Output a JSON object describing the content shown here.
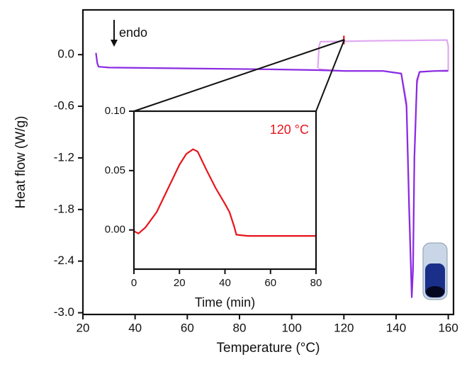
{
  "chart_data": [
    {
      "type": "line",
      "xlabel": "Temperature (°C)",
      "ylabel": "Heat flow (W/g)",
      "xlim": [
        20,
        162
      ],
      "xticks": [
        20,
        40,
        60,
        80,
        100,
        120,
        140,
        160
      ],
      "ylim": [
        -3.02,
        0.52
      ],
      "yticks": [
        {
          "value": 0,
          "label": "0.0"
        },
        -0.6,
        -1.2,
        -1.8,
        -2.4,
        {
          "value": -3,
          "label": "-3.0"
        }
      ],
      "annotations": [
        "endo"
      ],
      "series": [
        {
          "color": "#e0a8f0",
          "x": [
            110,
            110.5,
            111,
            130,
            159.5,
            160,
            160,
            155,
            149,
            148,
            147,
            146.5,
            146,
            145,
            144,
            142,
            135,
            120,
            111,
            110.5
          ],
          "values": [
            -0.16,
            0.1,
            0.15,
            0.16,
            0.17,
            0.1,
            -0.18,
            -0.19,
            -0.2,
            -0.35,
            -1.2,
            -2.4,
            -2.75,
            -1.7,
            -0.55,
            -0.22,
            -0.19,
            -0.19,
            -0.17,
            -0.16
          ]
        },
        {
          "color": "#8a2be2",
          "x": [
            25,
            25.5,
            26,
            30,
            60,
            90,
            110,
            120,
            135,
            142,
            144,
            145,
            146,
            146.5,
            147,
            148,
            149,
            155,
            160
          ],
          "values": [
            0.02,
            -0.1,
            -0.14,
            -0.15,
            -0.16,
            -0.17,
            -0.18,
            -0.19,
            -0.19,
            -0.22,
            -0.6,
            -1.8,
            -2.82,
            -2.5,
            -1.2,
            -0.3,
            -0.2,
            -0.19,
            -0.19
          ]
        },
        {
          "color": "#e8141c",
          "x": [
            120,
            120
          ],
          "values": [
            0.12,
            0.22
          ]
        }
      ]
    },
    {
      "type": "line",
      "xlabel": "Time (min)",
      "xlim": [
        0,
        80
      ],
      "xticks": [
        0,
        20,
        40,
        60,
        80
      ],
      "ylim": [
        -0.033,
        0.1
      ],
      "yticks": [
        {
          "value": 0,
          "label": "0.00"
        },
        0.05,
        {
          "value": 0.1,
          "label": "0.10"
        }
      ],
      "annotations": [
        "120 °C"
      ],
      "series": [
        {
          "color": "#e8141c",
          "x": [
            0,
            2,
            5,
            10,
            15,
            20,
            23,
            26,
            28,
            32,
            36,
            40,
            42,
            44,
            45,
            50,
            80
          ],
          "values": [
            -0.001,
            -0.003,
            0.002,
            0.015,
            0.035,
            0.055,
            0.064,
            0.068,
            0.066,
            0.05,
            0.035,
            0.022,
            0.015,
            0.003,
            -0.004,
            -0.005,
            -0.005
          ]
        }
      ]
    }
  ]
}
